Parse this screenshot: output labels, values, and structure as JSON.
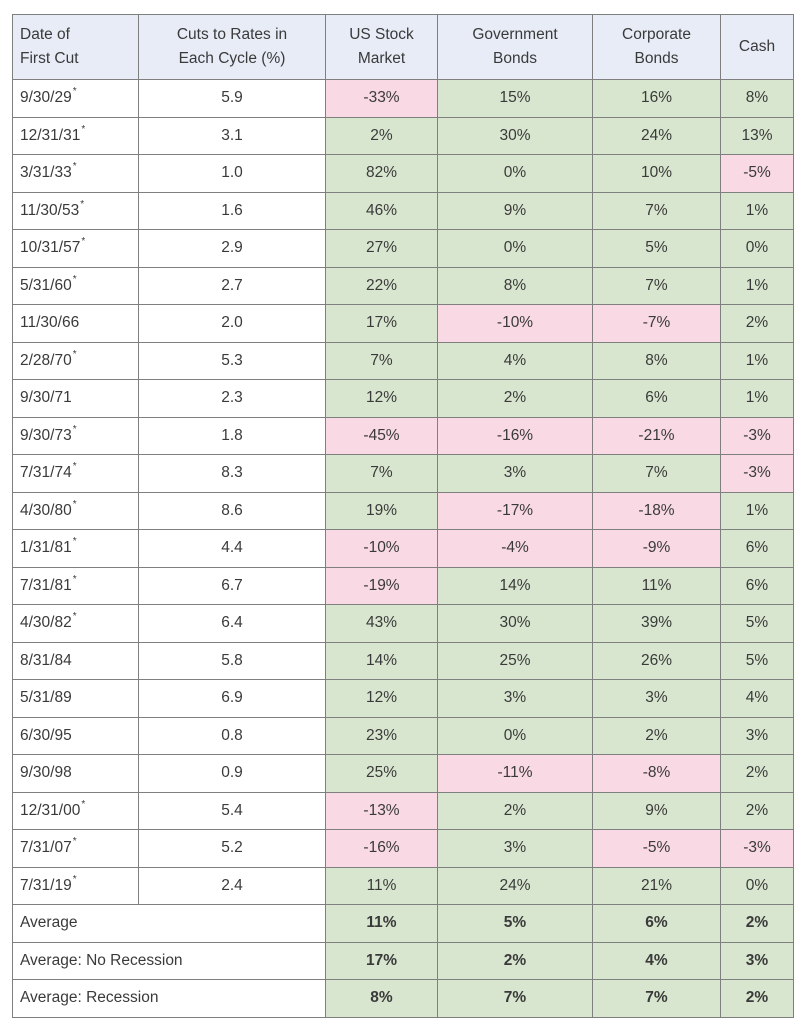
{
  "table": {
    "headers": [
      [
        "Date of",
        "First Cut"
      ],
      [
        "Cuts to Rates in",
        "Each Cycle (%)"
      ],
      [
        "US Stock",
        "Market"
      ],
      [
        "Government",
        "Bonds"
      ],
      [
        "Corporate",
        "Bonds"
      ],
      [
        "Cash"
      ]
    ],
    "rows": [
      {
        "date": "9/30/29",
        "star": "*",
        "cut": "5.9",
        "stock": "-33%",
        "gov": "15%",
        "corp": "16%",
        "cash": "8%"
      },
      {
        "date": "12/31/31",
        "star": "*",
        "cut": "3.1",
        "stock": "2%",
        "gov": "30%",
        "corp": "24%",
        "cash": "13%"
      },
      {
        "date": "3/31/33",
        "star": "*",
        "cut": "1.0",
        "stock": "82%",
        "gov": "0%",
        "corp": "10%",
        "cash": "-5%"
      },
      {
        "date": "11/30/53",
        "star": "*",
        "cut": "1.6",
        "stock": "46%",
        "gov": "9%",
        "corp": "7%",
        "cash": "1%"
      },
      {
        "date": "10/31/57",
        "star": "*",
        "cut": "2.9",
        "stock": "27%",
        "gov": "0%",
        "corp": "5%",
        "cash": "0%"
      },
      {
        "date": "5/31/60",
        "star": "*",
        "cut": "2.7",
        "stock": "22%",
        "gov": "8%",
        "corp": "7%",
        "cash": "1%"
      },
      {
        "date": "11/30/66",
        "star": "",
        "cut": "2.0",
        "stock": "17%",
        "gov": "-10%",
        "corp": "-7%",
        "cash": "2%"
      },
      {
        "date": "2/28/70",
        "star": "*",
        "cut": "5.3",
        "stock": "7%",
        "gov": "4%",
        "corp": "8%",
        "cash": "1%"
      },
      {
        "date": "9/30/71",
        "star": "",
        "cut": "2.3",
        "stock": "12%",
        "gov": "2%",
        "corp": "6%",
        "cash": "1%"
      },
      {
        "date": "9/30/73",
        "star": "*",
        "cut": "1.8",
        "stock": "-45%",
        "gov": "-16%",
        "corp": "-21%",
        "cash": "-3%"
      },
      {
        "date": "7/31/74",
        "star": "*",
        "cut": "8.3",
        "stock": "7%",
        "gov": "3%",
        "corp": "7%",
        "cash": "-3%"
      },
      {
        "date": "4/30/80",
        "star": "*",
        "cut": "8.6",
        "stock": "19%",
        "gov": "-17%",
        "corp": "-18%",
        "cash": "1%"
      },
      {
        "date": "1/31/81",
        "star": "*",
        "cut": "4.4",
        "stock": "-10%",
        "gov": "-4%",
        "corp": "-9%",
        "cash": "6%"
      },
      {
        "date": "7/31/81",
        "star": "*",
        "cut": "6.7",
        "stock": "-19%",
        "gov": "14%",
        "corp": "11%",
        "cash": "6%"
      },
      {
        "date": "4/30/82",
        "star": "*",
        "cut": "6.4",
        "stock": "43%",
        "gov": "30%",
        "corp": "39%",
        "cash": "5%"
      },
      {
        "date": "8/31/84",
        "star": "",
        "cut": "5.8",
        "stock": "14%",
        "gov": "25%",
        "corp": "26%",
        "cash": "5%"
      },
      {
        "date": "5/31/89",
        "star": "",
        "cut": "6.9",
        "stock": "12%",
        "gov": "3%",
        "corp": "3%",
        "cash": "4%"
      },
      {
        "date": "6/30/95",
        "star": "",
        "cut": "0.8",
        "stock": "23%",
        "gov": "0%",
        "corp": "2%",
        "cash": "3%"
      },
      {
        "date": "9/30/98",
        "star": "",
        "cut": "0.9",
        "stock": "25%",
        "gov": "-11%",
        "corp": "-8%",
        "cash": "2%"
      },
      {
        "date": "12/31/00",
        "star": "*",
        "cut": "5.4",
        "stock": "-13%",
        "gov": "2%",
        "corp": "9%",
        "cash": "2%"
      },
      {
        "date": "7/31/07",
        "star": "*",
        "cut": "5.2",
        "stock": "-16%",
        "gov": "3%",
        "corp": "-5%",
        "cash": "-3%"
      },
      {
        "date": "7/31/19",
        "star": "*",
        "cut": "2.4",
        "stock": "11%",
        "gov": "24%",
        "corp": "21%",
        "cash": "0%"
      }
    ],
    "summary": [
      {
        "label": "Average",
        "stock": "11%",
        "gov": "5%",
        "corp": "6%",
        "cash": "2%"
      },
      {
        "label": "Average: No Recession",
        "stock": "17%",
        "gov": "2%",
        "corp": "4%",
        "cash": "3%"
      },
      {
        "label": "Average: Recession",
        "stock": "8%",
        "gov": "7%",
        "corp": "7%",
        "cash": "2%"
      }
    ]
  }
}
